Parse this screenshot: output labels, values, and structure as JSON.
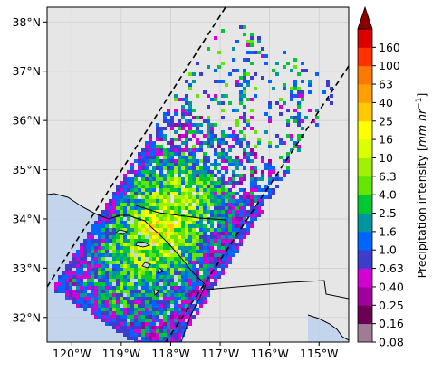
{
  "map": {
    "x_ticks": [
      {
        "lon": -120,
        "label": "120°W"
      },
      {
        "lon": -119,
        "label": "119°W"
      },
      {
        "lon": -118,
        "label": "118°W"
      },
      {
        "lon": -117,
        "label": "117°W"
      },
      {
        "lon": -116,
        "label": "116°W"
      },
      {
        "lon": -115,
        "label": "115°W"
      }
    ],
    "y_ticks": [
      {
        "lat": 32,
        "label": "32°N"
      },
      {
        "lat": 33,
        "label": "33°N"
      },
      {
        "lat": 34,
        "label": "34°N"
      },
      {
        "lat": 35,
        "label": "35°N"
      },
      {
        "lat": 36,
        "label": "36°N"
      },
      {
        "lat": 37,
        "label": "37°N"
      },
      {
        "lat": 38,
        "label": "38°N"
      }
    ],
    "extent": {
      "lon_min": -120.5,
      "lon_max": -114.4,
      "lat_min": 31.5,
      "lat_max": 38.3
    },
    "colors": {
      "land": "#e6e6e6",
      "ocean": "#c3d5ec",
      "grid": "#cccccc"
    }
  },
  "colorbar": {
    "label": "Precipitation intensity [mm hr⁻¹]",
    "label_prefix": "Precipitation intensity [",
    "label_unit": "mm hr",
    "label_sup": "−1",
    "label_suffix": "]",
    "tick_labels": [
      "0.08",
      "0.16",
      "0.25",
      "0.40",
      "0.63",
      "1.0",
      "1.6",
      "2.5",
      "4.0",
      "6.3",
      "10",
      "16",
      "25",
      "40",
      "63",
      "100",
      "160"
    ],
    "colors": [
      "#9e7d94",
      "#6b0055",
      "#a1009a",
      "#d200d2",
      "#3c3ccd",
      "#0064ff",
      "#0096a0",
      "#00c832",
      "#64e600",
      "#a0f000",
      "#dcff00",
      "#ffff00",
      "#ffc800",
      "#ffa000",
      "#ff7800",
      "#ff3200",
      "#dc0000"
    ],
    "extend_color": "#8b0000"
  }
}
